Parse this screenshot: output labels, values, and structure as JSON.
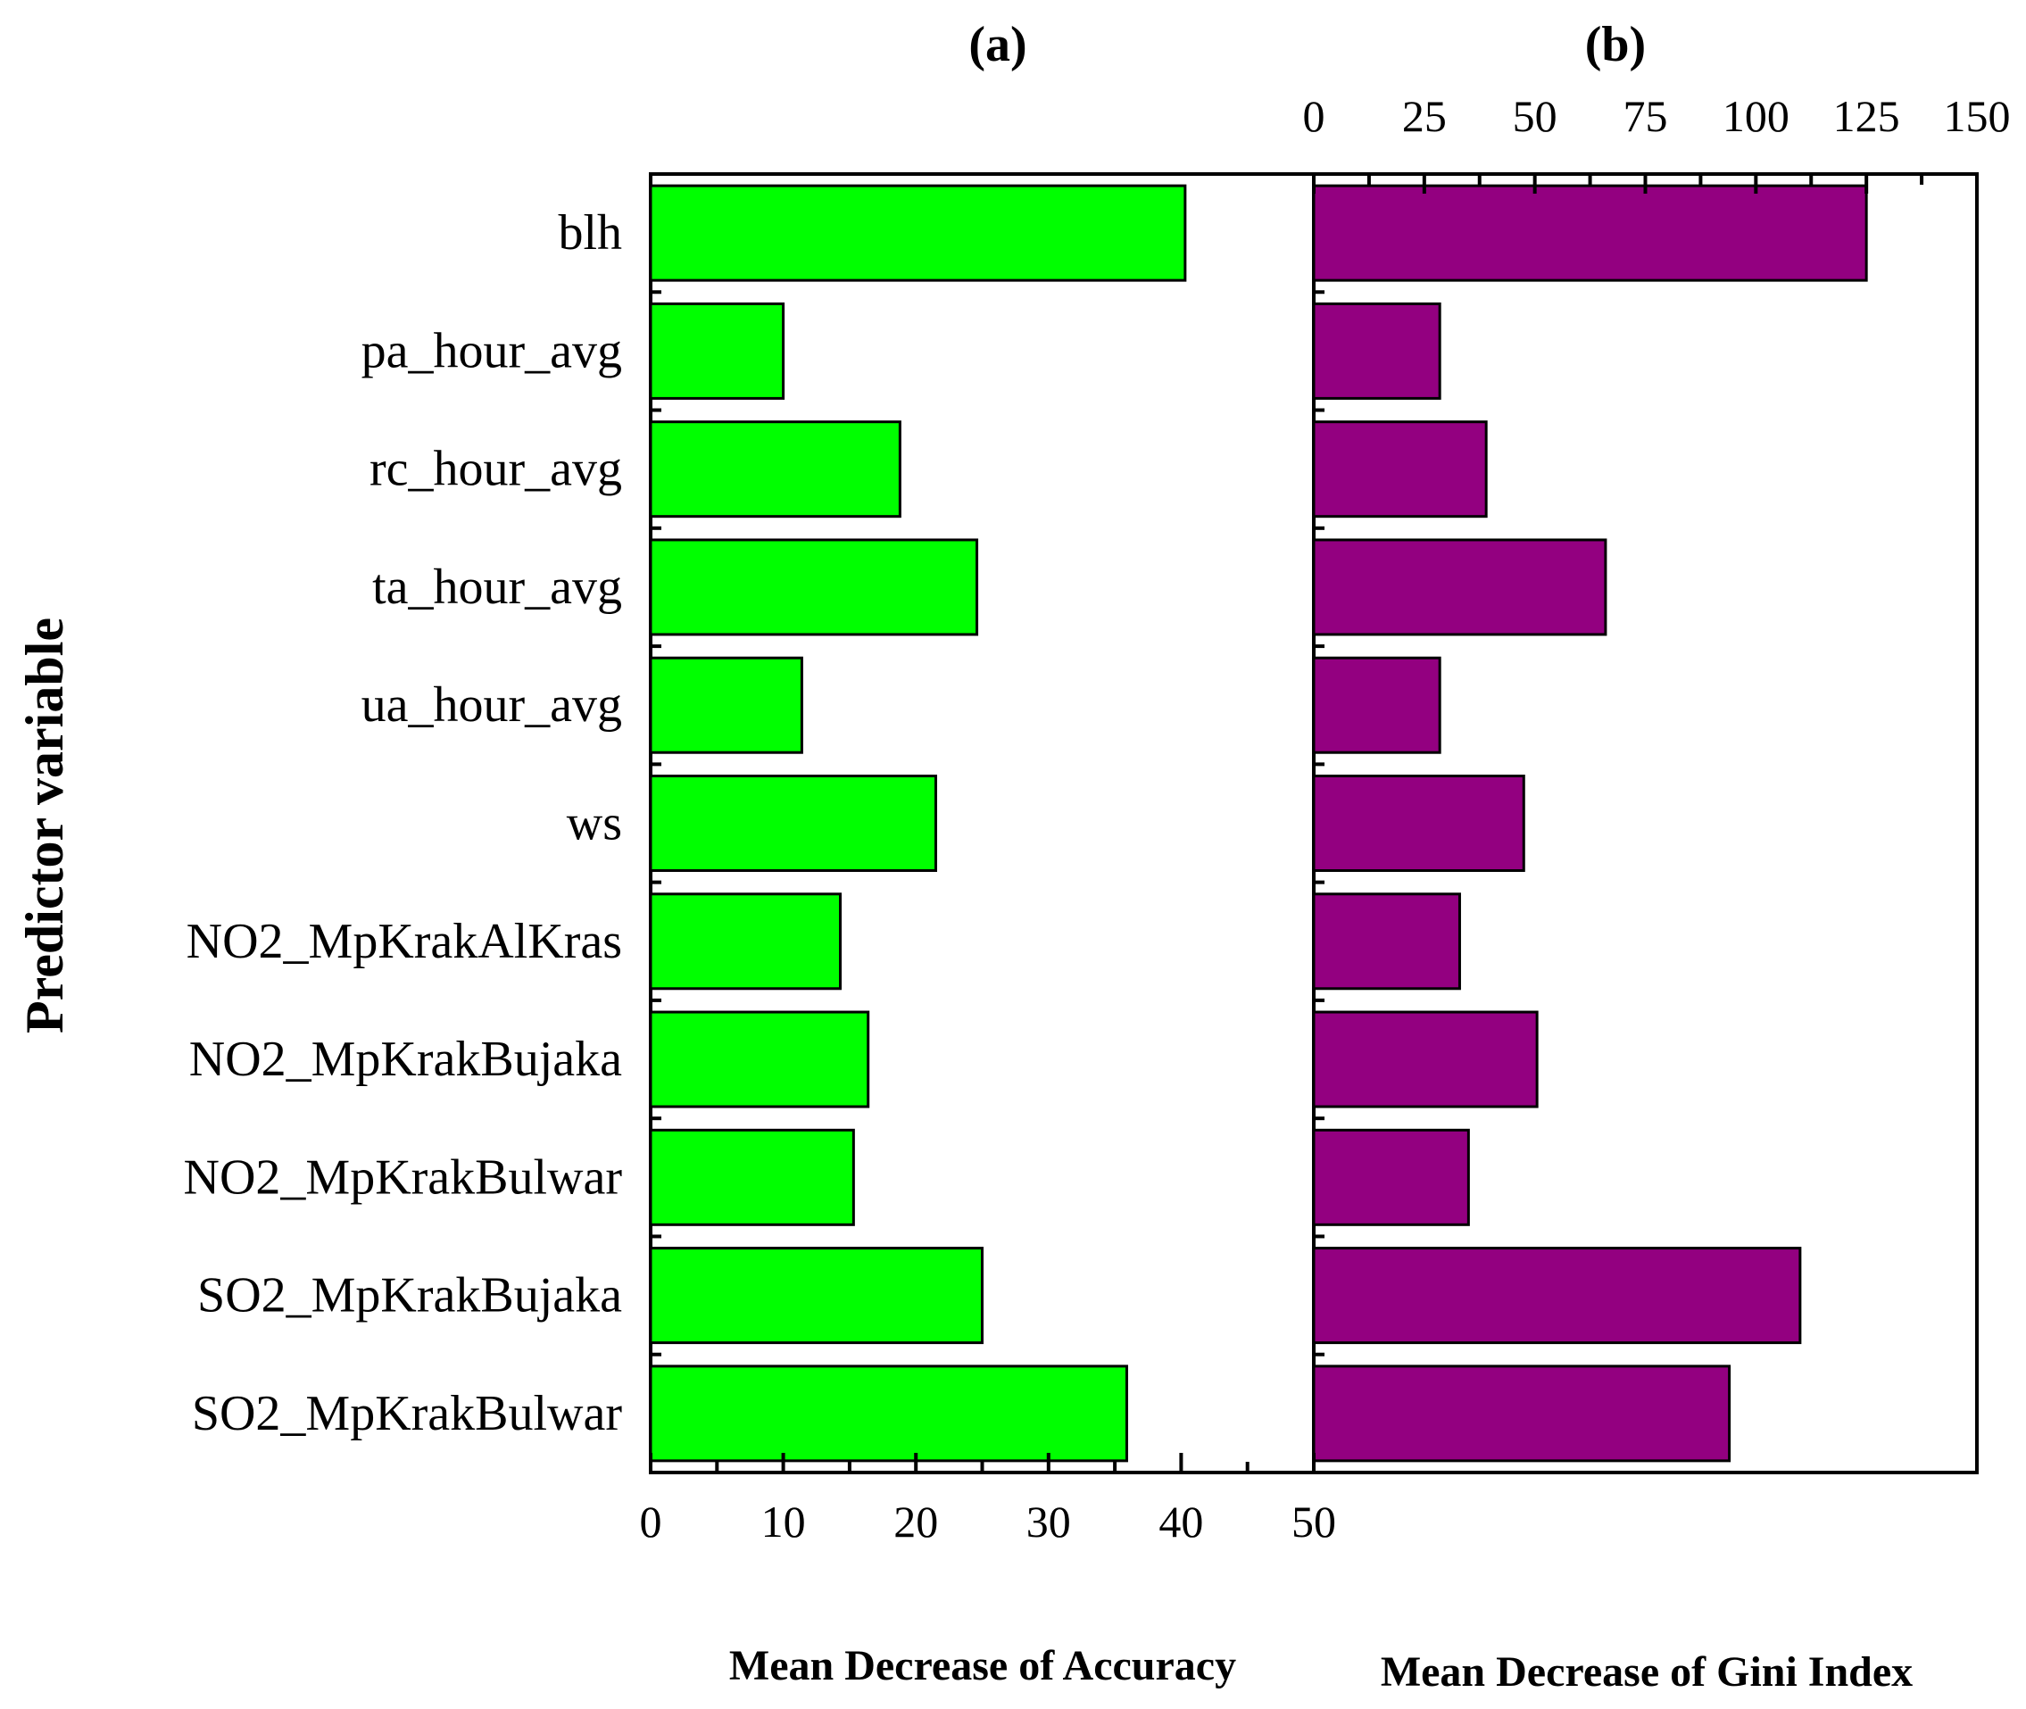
{
  "chart_data": [
    {
      "type": "bar",
      "orientation": "horizontal",
      "panel_label": "(a)",
      "categories": [
        "blh",
        "pa_hour_avg",
        "rc_hour_avg",
        "ta_hour_avg",
        "ua_hour_avg",
        "ws",
        "NO2_MpKrakAlKras",
        "NO2_MpKrakBujaka",
        "NO2_MpKrakBulwar",
        "SO2_MpKrakBujaka",
        "SO2_MpKrakBulwar"
      ],
      "values": [
        40.3,
        10.0,
        18.8,
        24.6,
        11.4,
        21.5,
        14.3,
        16.4,
        15.3,
        25.0,
        35.9
      ],
      "xlim": [
        0,
        50
      ],
      "xticks": [
        "0",
        "10",
        "20",
        "30",
        "40",
        "50"
      ],
      "xlabel": "Mean Decrease of Accuracy",
      "ylabel": "Predictor variable",
      "bar_color": "#00ff00",
      "xaxis_position": "bottom"
    },
    {
      "type": "bar",
      "orientation": "horizontal",
      "panel_label": "(b)",
      "categories": [
        "blh",
        "pa_hour_avg",
        "rc_hour_avg",
        "ta_hour_avg",
        "ua_hour_avg",
        "ws",
        "NO2_MpKrakAlKras",
        "NO2_MpKrakBujaka",
        "NO2_MpKrakBulwar",
        "SO2_MpKrakBujaka",
        "SO2_MpKrakBulwar"
      ],
      "values": [
        125,
        28.5,
        39,
        66,
        28.5,
        47.5,
        33,
        50.5,
        35,
        110,
        94
      ],
      "xlim": [
        0,
        150
      ],
      "xticks": [
        "0",
        "25",
        "50",
        "75",
        "100",
        "125",
        "150"
      ],
      "xlabel": "Mean Decrease of Gini Index",
      "bar_color": "#930080",
      "xaxis_position": "top"
    }
  ]
}
